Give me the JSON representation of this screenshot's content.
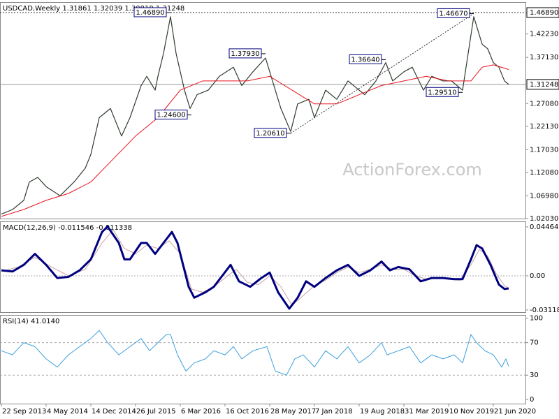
{
  "watermark": "ActionForex.com",
  "chart_data": [
    {
      "type": "line",
      "title": "USDCAD,Weekly  1.31861 1.32039 1.30810 1.31248",
      "xlim": [
        -1,
        375
      ],
      "ylim": [
        1.0203,
        1.4917
      ],
      "yticks": [
        {
          "value": 1.0203,
          "label": "1.02030"
        },
        {
          "value": 1.0698,
          "label": "1.06980"
        },
        {
          "value": 1.1208,
          "label": "1.12080"
        },
        {
          "value": 1.1703,
          "label": "1.17030"
        },
        {
          "value": 1.2213,
          "label": "1.22130"
        },
        {
          "value": 1.2708,
          "label": "1.27080"
        },
        {
          "value": 1.3713,
          "label": "1.37130"
        },
        {
          "value": 1.4223,
          "label": "1.42230"
        },
        {
          "value": 1.4689,
          "label": "1.46890"
        }
      ],
      "last_price": 1.31248,
      "series": [
        {
          "color": "#2f3d2f",
          "x": [
            0,
            8,
            16,
            20,
            26,
            32,
            42,
            52,
            60,
            64,
            70,
            78,
            86,
            92,
            100,
            104,
            110,
            112,
            116,
            121,
            125,
            131,
            135,
            140,
            148,
            156,
            166,
            172,
            180,
            189,
            200,
            207,
            212,
            220,
            224,
            232,
            240,
            248,
            256,
            260,
            268,
            275,
            280,
            288,
            294,
            302,
            308,
            316,
            322,
            330,
            338,
            344,
            348,
            352,
            356,
            360,
            363
          ],
          "values": [
            1.03,
            1.04,
            1.06,
            1.1,
            1.11,
            1.09,
            1.07,
            1.1,
            1.13,
            1.16,
            1.24,
            1.26,
            1.2,
            1.24,
            1.31,
            1.33,
            1.3,
            1.33,
            1.38,
            1.46,
            1.38,
            1.3,
            1.26,
            1.29,
            1.3,
            1.33,
            1.35,
            1.31,
            1.34,
            1.37,
            1.26,
            1.21,
            1.27,
            1.28,
            1.24,
            1.3,
            1.28,
            1.32,
            1.3,
            1.29,
            1.32,
            1.36,
            1.32,
            1.34,
            1.35,
            1.3,
            1.33,
            1.32,
            1.32,
            1.3,
            1.46,
            1.4,
            1.39,
            1.36,
            1.35,
            1.32,
            1.3125
          ]
        },
        {
          "color": "#e8141e",
          "x": [
            0,
            16,
            32,
            48,
            64,
            80,
            96,
            112,
            128,
            144,
            160,
            176,
            192,
            208,
            224,
            240,
            256,
            272,
            288,
            304,
            320,
            336,
            344,
            352,
            363
          ],
          "values": [
            1.025,
            1.04,
            1.06,
            1.075,
            1.1,
            1.15,
            1.2,
            1.24,
            1.3,
            1.32,
            1.32,
            1.32,
            1.33,
            1.3,
            1.27,
            1.27,
            1.29,
            1.31,
            1.32,
            1.33,
            1.32,
            1.32,
            1.35,
            1.355,
            1.345
          ]
        }
      ],
      "annotations": [
        {
          "label": "1.46890",
          "x": 121,
          "y": 1.4689
        },
        {
          "label": "1.24600",
          "x": 136,
          "y": 1.246
        },
        {
          "label": "1.37930",
          "x": 189,
          "y": 1.3793
        },
        {
          "label": "1.20610",
          "x": 207,
          "y": 1.2061
        },
        {
          "label": "1.36640",
          "x": 275,
          "y": 1.3664
        },
        {
          "label": "1.29510",
          "x": 330,
          "y": 1.2951
        },
        {
          "label": "1.46670",
          "x": 338,
          "y": 1.4667
        }
      ]
    },
    {
      "type": "line",
      "title": "MACD(12,26,9) -0.011546 -0.011338",
      "xlim": [
        -1,
        375
      ],
      "ylim": [
        -0.0338,
        0.0497
      ],
      "yticks": [
        -0.031183,
        {
          "value": 0,
          "label": "0.00"
        },
        0.044642
      ],
      "series": [
        {
          "color": "#c9a3a3",
          "x": [
            0,
            12,
            24,
            36,
            48,
            60,
            72,
            80,
            88,
            96,
            104,
            112,
            120,
            128,
            136,
            144,
            152,
            160,
            168,
            176,
            184,
            192,
            200,
            208,
            216,
            224,
            232,
            240,
            248,
            256,
            264,
            272,
            280,
            288,
            296,
            304,
            312,
            320,
            328,
            336,
            342,
            348,
            354,
            360,
            363
          ],
          "values": [
            0.004,
            0.008,
            0.017,
            0.008,
            0.0,
            0.006,
            0.03,
            0.042,
            0.025,
            0.02,
            0.028,
            0.025,
            0.032,
            0.02,
            -0.012,
            -0.015,
            -0.01,
            -0.002,
            0.006,
            -0.006,
            -0.008,
            0.0,
            -0.01,
            -0.027,
            -0.018,
            -0.009,
            -0.004,
            0.003,
            0.008,
            0.003,
            0.006,
            0.01,
            0.006,
            0.006,
            0.0,
            -0.003,
            -0.002,
            -0.003,
            -0.004,
            0.01,
            0.024,
            0.018,
            0.002,
            -0.009,
            -0.0113
          ]
        },
        {
          "color": "#000080",
          "x": [
            0,
            8,
            16,
            24,
            32,
            40,
            48,
            56,
            64,
            72,
            76,
            84,
            88,
            92,
            100,
            104,
            110,
            116,
            122,
            126,
            134,
            138,
            146,
            152,
            158,
            164,
            170,
            178,
            186,
            192,
            198,
            206,
            212,
            218,
            224,
            232,
            240,
            248,
            256,
            264,
            272,
            278,
            284,
            292,
            300,
            308,
            316,
            324,
            330,
            336,
            340,
            344,
            350,
            356,
            360,
            363
          ],
          "values": [
            0.005,
            0.004,
            0.01,
            0.02,
            0.01,
            -0.002,
            -0.001,
            0.005,
            0.015,
            0.04,
            0.045,
            0.03,
            0.015,
            0.015,
            0.03,
            0.03,
            0.02,
            0.03,
            0.04,
            0.03,
            -0.01,
            -0.02,
            -0.015,
            -0.01,
            0.0,
            0.01,
            -0.005,
            -0.01,
            -0.002,
            0.003,
            -0.015,
            -0.03,
            -0.02,
            -0.005,
            -0.01,
            -0.002,
            0.005,
            0.01,
            0.0,
            0.005,
            0.013,
            0.005,
            0.008,
            0.006,
            -0.005,
            -0.002,
            -0.002,
            -0.003,
            -0.003,
            0.015,
            0.028,
            0.025,
            0.01,
            -0.008,
            -0.012,
            -0.0115
          ]
        }
      ]
    },
    {
      "type": "line",
      "title": "RSI(14) 41.0140",
      "xlim": [
        -1,
        375
      ],
      "ylim": [
        -5,
        104
      ],
      "yticks": [
        0,
        30,
        70,
        100
      ],
      "levels": [
        30,
        70
      ],
      "xticks": [
        {
          "value": 0,
          "label": "22 Sep 2013"
        },
        {
          "value": 32,
          "label": "4 May 2014"
        },
        {
          "value": 64,
          "label": "14 Dec 2014"
        },
        {
          "value": 96,
          "label": "26 Jul 2015"
        },
        {
          "value": 128,
          "label": "6 Mar 2016"
        },
        {
          "value": 160,
          "label": "16 Oct 2016"
        },
        {
          "value": 192,
          "label": "28 May 2017"
        },
        {
          "value": 224,
          "label": "7 Jan 2018"
        },
        {
          "value": 256,
          "label": "19 Aug 2018"
        },
        {
          "value": 288,
          "label": "31 Mar 2019"
        },
        {
          "value": 320,
          "label": "10 Nov 2019"
        },
        {
          "value": 352,
          "label": "21 Jun 2020"
        }
      ],
      "series": [
        {
          "color": "#3a9fdc",
          "x": [
            0,
            8,
            16,
            24,
            32,
            40,
            48,
            56,
            64,
            70,
            76,
            84,
            92,
            100,
            106,
            112,
            118,
            121,
            126,
            132,
            138,
            146,
            152,
            160,
            166,
            172,
            180,
            190,
            196,
            204,
            210,
            216,
            224,
            232,
            240,
            248,
            256,
            264,
            272,
            276,
            284,
            292,
            300,
            308,
            316,
            324,
            330,
            336,
            340,
            346,
            352,
            358,
            361,
            363
          ],
          "values": [
            60,
            55,
            70,
            65,
            50,
            40,
            55,
            65,
            75,
            85,
            70,
            55,
            65,
            75,
            60,
            70,
            80,
            80,
            55,
            35,
            45,
            50,
            60,
            55,
            65,
            50,
            60,
            65,
            35,
            30,
            50,
            55,
            40,
            60,
            50,
            65,
            45,
            55,
            70,
            55,
            60,
            65,
            45,
            55,
            50,
            55,
            45,
            80,
            70,
            60,
            55,
            40,
            50,
            41
          ]
        }
      ]
    }
  ]
}
